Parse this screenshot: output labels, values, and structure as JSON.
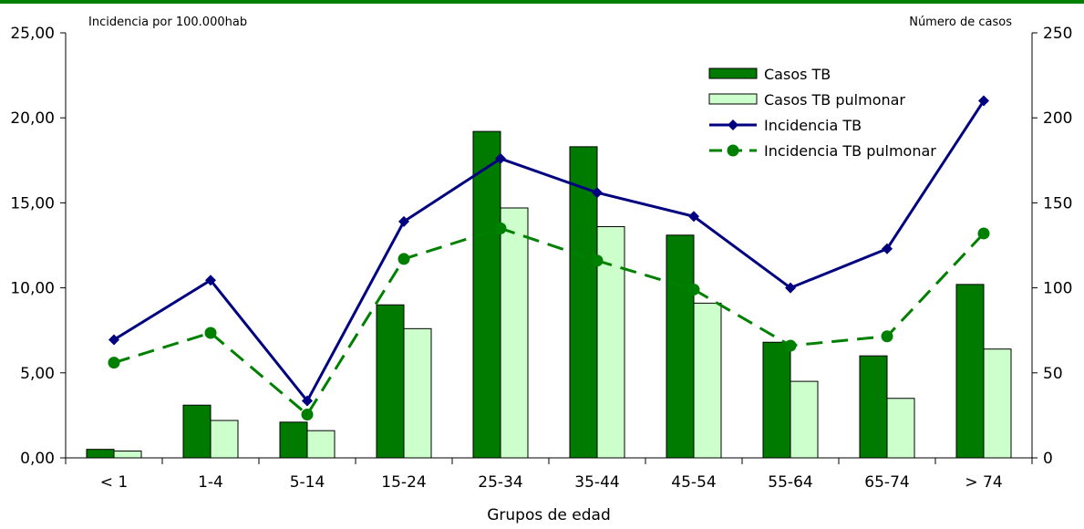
{
  "chart_data": {
    "type": "bar",
    "categories": [
      "< 1",
      "1-4",
      "5-14",
      "15-24",
      "25-34",
      "35-44",
      "45-54",
      "55-64",
      "65-74",
      "> 74"
    ],
    "series": [
      {
        "name": "Casos TB",
        "kind": "bar",
        "axis": "right",
        "color": "#007b00",
        "values": [
          5,
          31,
          21,
          90,
          192,
          183,
          131,
          68,
          60,
          102
        ]
      },
      {
        "name": "Casos TB pulmonar",
        "kind": "bar",
        "axis": "right",
        "color": "#ccffcc",
        "values": [
          4,
          22,
          16,
          76,
          147,
          136,
          91,
          45,
          35,
          64
        ]
      },
      {
        "name": "Incidencia TB",
        "kind": "line",
        "marker": "diamond",
        "axis": "left",
        "color": "#000080",
        "values": [
          6.95,
          10.45,
          3.35,
          13.9,
          17.6,
          15.6,
          14.2,
          10.0,
          12.3,
          21.0
        ]
      },
      {
        "name": "Incidencia TB pulmonar",
        "kind": "line",
        "marker": "circle",
        "dashed": true,
        "axis": "left",
        "color": "#008000",
        "values": [
          5.6,
          7.35,
          2.55,
          11.7,
          13.5,
          11.6,
          9.9,
          6.6,
          7.15,
          13.2
        ]
      }
    ],
    "left_axis": {
      "label": "Incidencia por 100.000hab",
      "ylim": [
        0,
        25
      ],
      "ticks": [
        "0,00",
        "5,00",
        "10,00",
        "15,00",
        "20,00",
        "25,00"
      ]
    },
    "right_axis": {
      "label": "Número de casos",
      "ylim": [
        0,
        250
      ],
      "ticks": [
        "0",
        "50",
        "100",
        "150",
        "200",
        "250"
      ]
    },
    "xlabel": "Grupos de edad",
    "grid": false,
    "legend_position": "top-right"
  },
  "colors": {
    "top_border": "#008000"
  }
}
